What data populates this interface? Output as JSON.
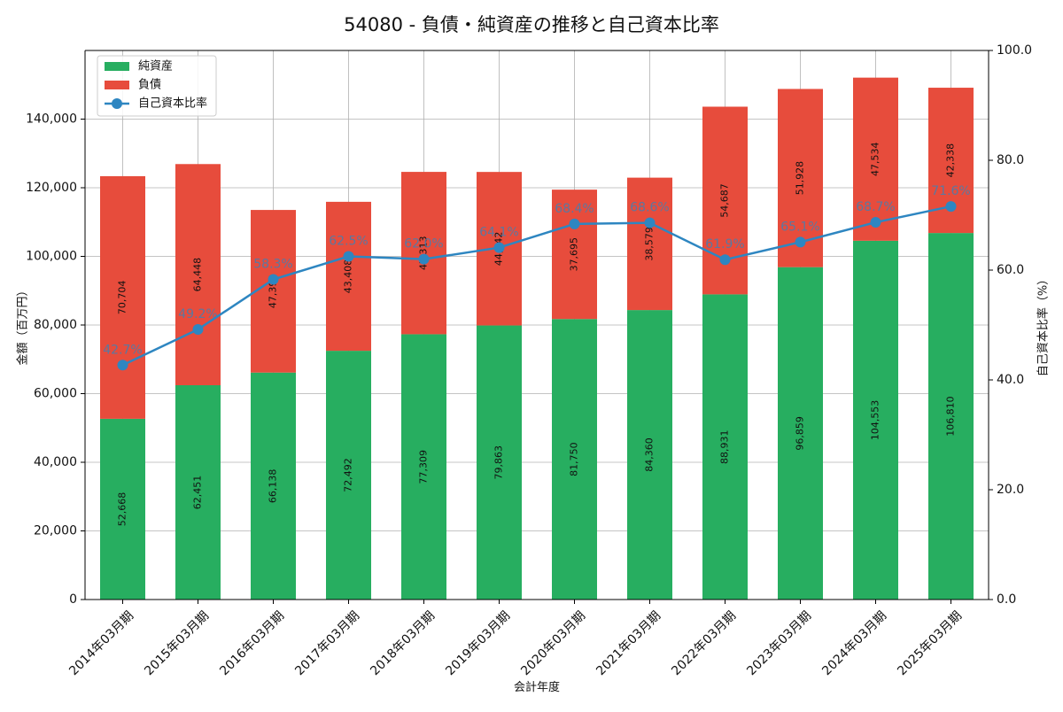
{
  "chart_data": {
    "type": "bar",
    "title": "54080 - 負債・純資産の推移と自己資本比率",
    "xlabel": "会計年度",
    "ylabel": "金額（百万円）",
    "y2label": "自己資本比率（%）",
    "categories": [
      "2014年03月期",
      "2015年03月期",
      "2016年03月期",
      "2017年03月期",
      "2018年03月期",
      "2019年03月期",
      "2020年03月期",
      "2021年03月期",
      "2022年03月期",
      "2023年03月期",
      "2024年03月期",
      "2025年03月期"
    ],
    "series": [
      {
        "name": "純資産",
        "type": "bar",
        "stacked": true,
        "color": "#27ae60",
        "values": [
          52668,
          62451,
          66138,
          72492,
          77309,
          79863,
          81750,
          84360,
          88931,
          96859,
          104553,
          106810
        ],
        "labels": [
          "52,668",
          "62,451",
          "66,138",
          "72,492",
          "77,309",
          "79,863",
          "81,750",
          "84,360",
          "88,931",
          "96,859",
          "104,553",
          "106,810"
        ]
      },
      {
        "name": "負債",
        "type": "bar",
        "stacked": true,
        "color": "#e74c3c",
        "values": [
          70704,
          64448,
          47390,
          43408,
          47313,
          44742,
          37695,
          38579,
          54687,
          51928,
          47534,
          42338
        ],
        "labels": [
          "70,704",
          "64,448",
          "47,390",
          "43,408",
          "47,313",
          "44,742",
          "37,695",
          "38,579",
          "54,687",
          "51,928",
          "47,534",
          "42,338"
        ]
      },
      {
        "name": "自己資本比率",
        "type": "line",
        "axis": "right",
        "color": "#2e86c1",
        "values": [
          42.7,
          49.2,
          58.3,
          62.5,
          62.0,
          64.1,
          68.4,
          68.6,
          61.9,
          65.1,
          68.7,
          71.6
        ],
        "labels": [
          "42.7%",
          "49.2%",
          "58.3%",
          "62.5%",
          "62.0%",
          "64.1%",
          "68.4%",
          "68.6%",
          "61.9%",
          "65.1%",
          "68.7%",
          "71.6%"
        ]
      }
    ],
    "ylim": [
      0,
      160000
    ],
    "yticks": [
      0,
      20000,
      40000,
      60000,
      80000,
      100000,
      120000,
      140000
    ],
    "ytick_labels": [
      "0",
      "20,000",
      "40,000",
      "60,000",
      "80,000",
      "100,000",
      "120,000",
      "140,000"
    ],
    "y2lim": [
      0,
      100
    ],
    "y2ticks": [
      0,
      20,
      40,
      60,
      80,
      100
    ],
    "y2tick_labels": [
      "0.0",
      "20.0",
      "40.0",
      "60.0",
      "80.0",
      "100.0"
    ],
    "grid": true,
    "legend_position": "top-left"
  }
}
